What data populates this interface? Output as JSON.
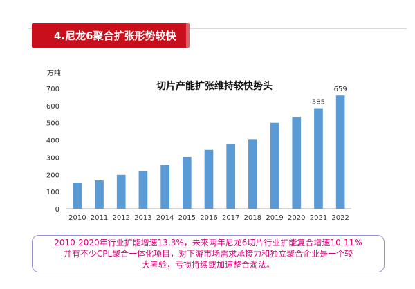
{
  "banner": {
    "title": "4.尼龙6聚合扩张形势较快"
  },
  "chart_data": {
    "type": "bar",
    "title": "切片产能扩张维持较快势头",
    "ylabel": "万吨",
    "xlabel": "",
    "categories": [
      "2010",
      "2011",
      "2012",
      "2013",
      "2014",
      "2015",
      "2016",
      "2017",
      "2018",
      "2019",
      "2020",
      "2021",
      "2022"
    ],
    "values": [
      153,
      165,
      198,
      218,
      255,
      302,
      343,
      378,
      405,
      500,
      535,
      585,
      659
    ],
    "ylim": [
      0,
      700
    ],
    "yticks": [
      0,
      100,
      200,
      300,
      400,
      500,
      600,
      700
    ],
    "data_labels": {
      "2021": "585",
      "2022": "659"
    },
    "bar_color": "#5b9bd5",
    "grid": false,
    "legend": "none"
  },
  "note": {
    "lines": [
      "2010-2020年行业扩能增速13.3%，未来两年尼龙6切片行业扩能复合增速10-11%",
      "并有不少CPL聚合一体化项目，对下游市场需求承接力和独立聚合企业是一个较",
      "大考验，亏损持续或加速整合淘汰。"
    ]
  }
}
